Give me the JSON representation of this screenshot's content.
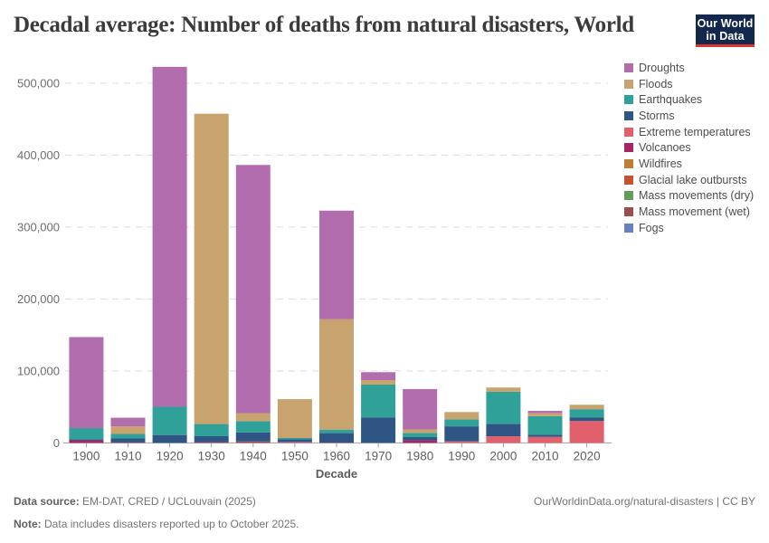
{
  "header": {
    "title": "Decadal average: Number of deaths from natural disasters, World",
    "logo": {
      "line1": "Our World",
      "line2": "in Data"
    }
  },
  "chart_data": {
    "type": "bar",
    "stacked": true,
    "title": "Decadal average: Number of deaths from natural disasters, World",
    "xlabel": "Decade",
    "ylabel": "",
    "grid": true,
    "legend_position": "right",
    "ylim": [
      0,
      530000
    ],
    "y_ticks": [
      0,
      100000,
      200000,
      300000,
      400000,
      500000
    ],
    "categories": [
      "1900",
      "1910",
      "1920",
      "1930",
      "1940",
      "1950",
      "1960",
      "1970",
      "1980",
      "1990",
      "2000",
      "2010",
      "2020"
    ],
    "series": [
      {
        "name": "Droughts",
        "color": "#b26dae",
        "values": [
          126500,
          12200,
          472500,
          0,
          345000,
          0,
          150900,
          11000,
          56000,
          0,
          0,
          3250,
          0
        ]
      },
      {
        "name": "Floods",
        "color": "#c9a36e",
        "values": [
          0,
          10300,
          0,
          431300,
          11100,
          54000,
          153400,
          6300,
          5000,
          10100,
          6000,
          4050,
          6200
        ]
      },
      {
        "name": "Earthquakes",
        "color": "#30a199",
        "values": [
          15500,
          6300,
          39200,
          16900,
          15700,
          1800,
          4900,
          45500,
          5700,
          9800,
          44800,
          25900,
          11750
        ]
      },
      {
        "name": "Storms",
        "color": "#2e5584",
        "values": [
          1500,
          5600,
          11000,
          8300,
          12400,
          3400,
          13200,
          35500,
          4600,
          20900,
          17000,
          2900,
          4700
        ]
      },
      {
        "name": "Extreme temperatures",
        "color": "#e25f6c",
        "values": [
          0,
          0,
          0,
          0,
          0,
          0,
          0,
          0,
          0,
          2100,
          9200,
          8400,
          30400
        ]
      },
      {
        "name": "Volcanoes",
        "color": "#a82465",
        "values": [
          3600,
          600,
          0,
          500,
          0,
          800,
          400,
          0,
          3500,
          0,
          0,
          0,
          0
        ]
      },
      {
        "name": "Wildfires",
        "color": "#c07d34",
        "values": [
          0,
          0,
          0,
          0,
          0,
          0,
          0,
          0,
          0,
          0,
          0,
          0,
          0
        ]
      },
      {
        "name": "Glacial lake outbursts",
        "color": "#c4532f",
        "values": [
          0,
          0,
          0,
          0,
          0,
          0,
          0,
          0,
          0,
          0,
          0,
          0,
          0
        ]
      },
      {
        "name": "Mass movements (dry)",
        "color": "#669c59",
        "values": [
          0,
          0,
          0,
          0,
          0,
          0,
          0,
          0,
          0,
          0,
          0,
          0,
          0
        ]
      },
      {
        "name": "Mass movement (wet)",
        "color": "#9c4d50",
        "values": [
          0,
          0,
          0,
          500,
          2100,
          400,
          0,
          0,
          0,
          0,
          0,
          0,
          0
        ]
      },
      {
        "name": "Fogs",
        "color": "#6781bd",
        "values": [
          0,
          0,
          0,
          0,
          0,
          400,
          0,
          0,
          0,
          0,
          0,
          0,
          0
        ]
      }
    ]
  },
  "footer": {
    "source_label": "Data source:",
    "source_value": "EM-DAT, CRED / UCLouvain (2025)",
    "note_label": "Note:",
    "note_value": "Data includes disasters reported up to October 2025.",
    "cc_text": "OurWorldinData.org/natural-disasters | CC BY"
  }
}
